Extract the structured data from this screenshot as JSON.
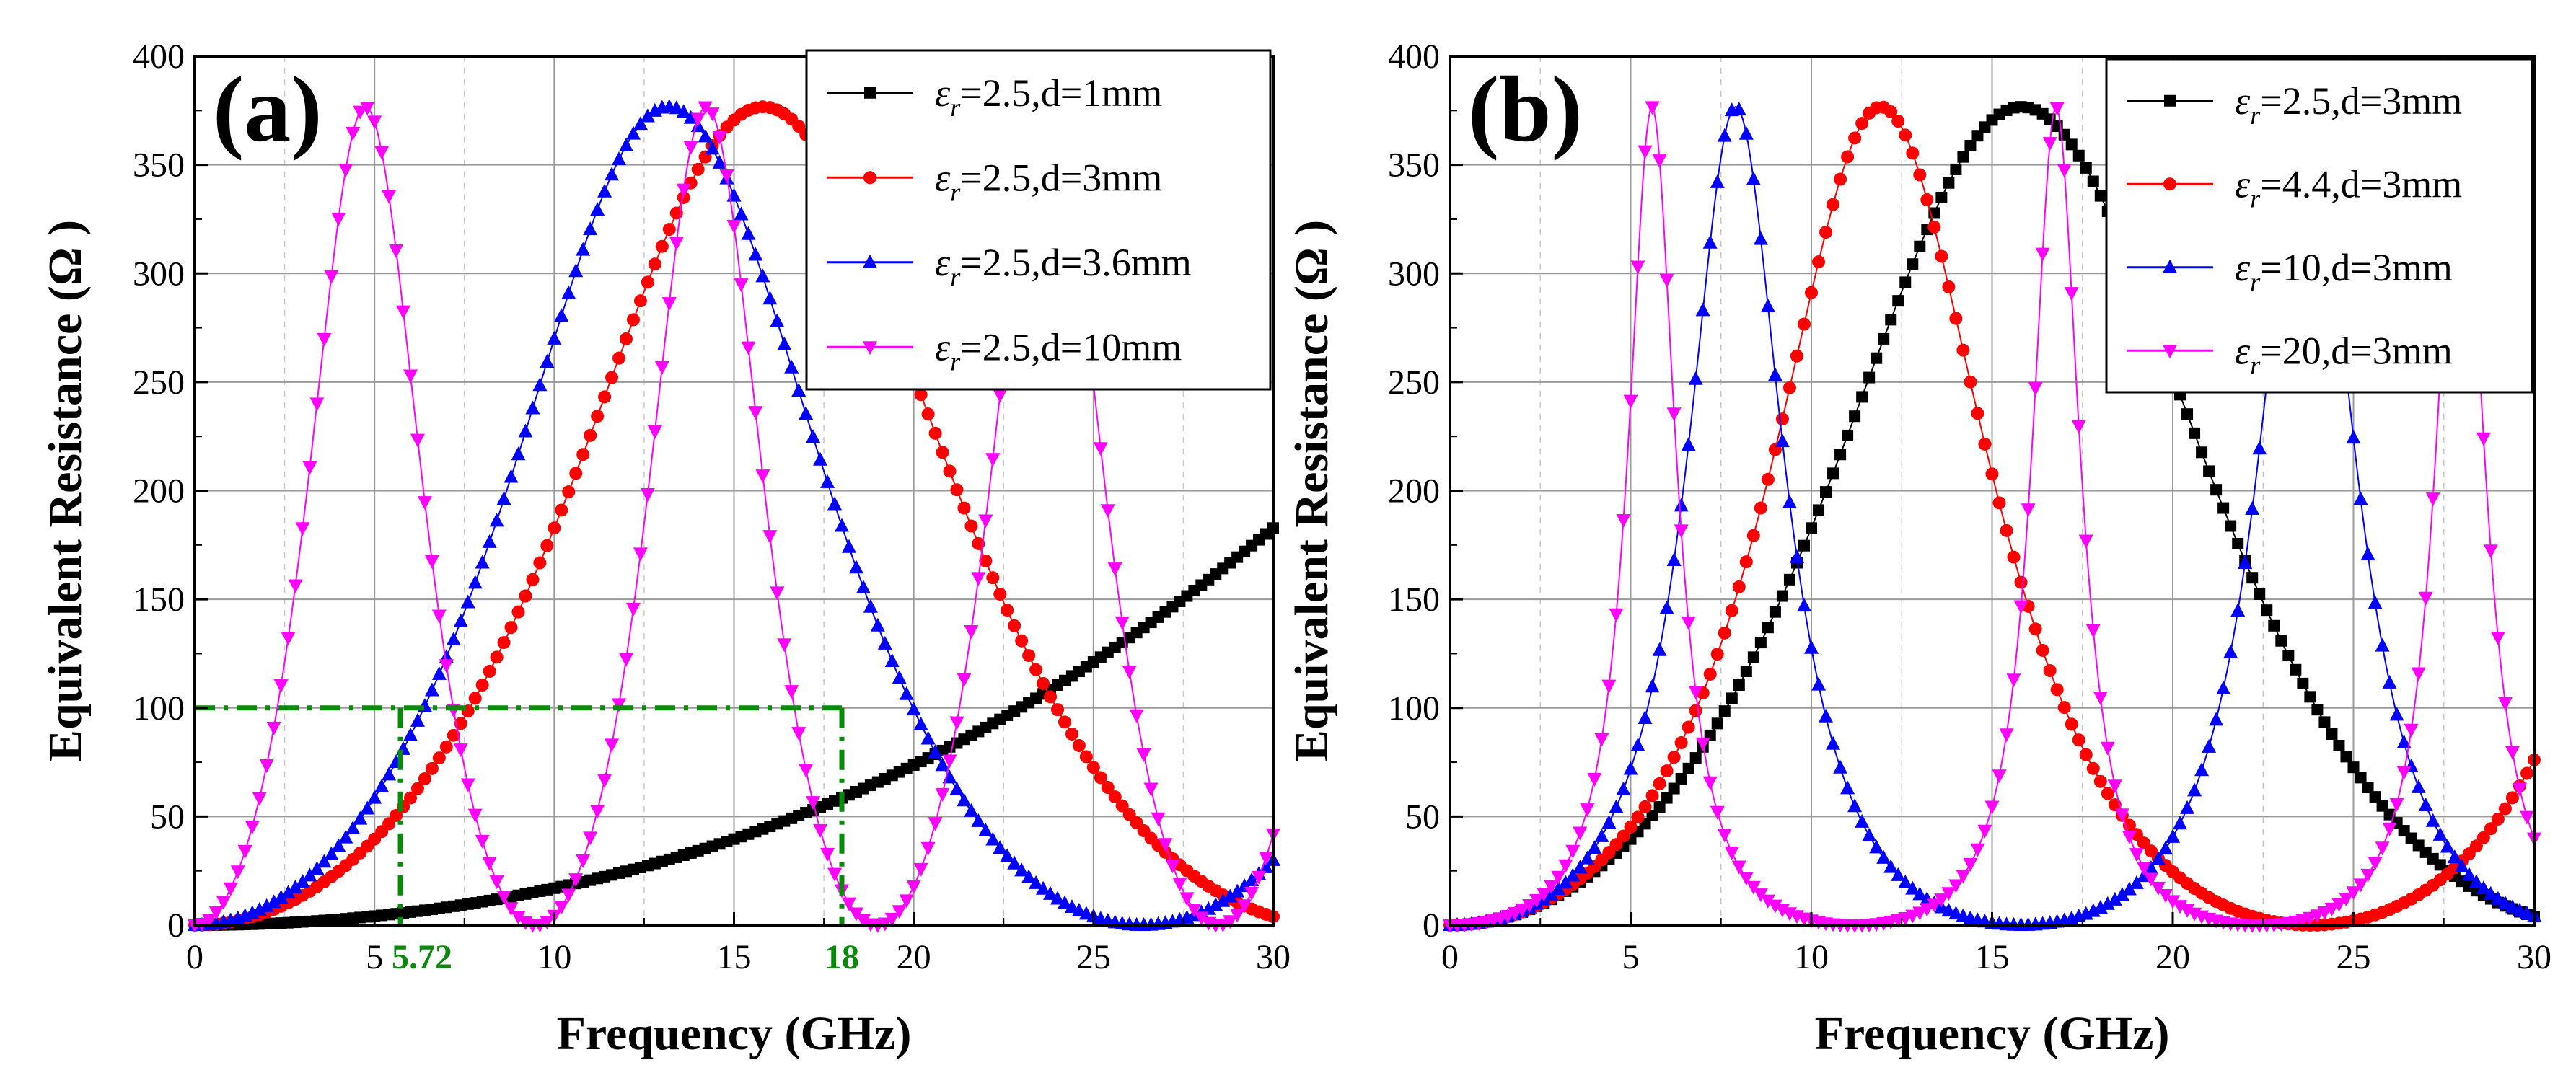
{
  "chart_data": [
    {
      "panel_label": "(a)",
      "type": "line",
      "xlabel": "Frequency (GHz)",
      "ylabel": "Equivalent Resistance (Ω )",
      "xlim": [
        0,
        30
      ],
      "ylim": [
        0,
        400
      ],
      "xticks": [
        "0",
        "5",
        "10",
        "15",
        "20",
        "25",
        "30"
      ],
      "yticks": [
        "0",
        "50",
        "100",
        "150",
        "200",
        "250",
        "300",
        "350",
        "400"
      ],
      "grid": true,
      "legend_position": "top-right",
      "eps_symbol": "ε",
      "eps_sub": "r",
      "series": [
        {
          "name": "=2.5,d=1mm",
          "color": "#000000",
          "marker": "square",
          "eps_r": 2.5,
          "d_mm": 1
        },
        {
          "name": "=2.5,d=3mm",
          "color": "#ff0000",
          "marker": "circle",
          "eps_r": 2.5,
          "d_mm": 3
        },
        {
          "name": "=2.5,d=3.6mm",
          "color": "#0000ff",
          "marker": "triangle-up",
          "eps_r": 2.5,
          "d_mm": 3.6
        },
        {
          "name": "=2.5,d=10mm",
          "color": "#ff00ff",
          "marker": "triangle-down",
          "eps_r": 2.5,
          "d_mm": 10
        }
      ],
      "annotations": {
        "threshold_y": 100,
        "x_low": 5.72,
        "x_high": 18,
        "x_low_label": "5.72",
        "x_high_label": "18",
        "color": "#0a8a0a"
      }
    },
    {
      "panel_label": "(b)",
      "type": "line",
      "xlabel": "Frequency (GHz)",
      "ylabel": "Equivalent Resistance (Ω )",
      "xlim": [
        0,
        30
      ],
      "ylim": [
        0,
        400
      ],
      "xticks": [
        "0",
        "5",
        "10",
        "15",
        "20",
        "25",
        "30"
      ],
      "yticks": [
        "0",
        "50",
        "100",
        "150",
        "200",
        "250",
        "300",
        "350",
        "400"
      ],
      "grid": true,
      "legend_position": "top-right",
      "eps_symbol": "ε",
      "eps_sub": "r",
      "series": [
        {
          "name": "=2.5,d=3mm",
          "color": "#000000",
          "marker": "square",
          "eps_r": 2.5,
          "d_mm": 3
        },
        {
          "name": "=4.4,d=3mm",
          "color": "#ff0000",
          "marker": "circle",
          "eps_r": 4.4,
          "d_mm": 3
        },
        {
          "name": "=10,d=3mm",
          "color": "#0000ff",
          "marker": "triangle-up",
          "eps_r": 10,
          "d_mm": 3
        },
        {
          "name": "=20,d=3mm",
          "color": "#ff00ff",
          "marker": "triangle-down",
          "eps_r": 20,
          "d_mm": 3
        }
      ]
    }
  ]
}
